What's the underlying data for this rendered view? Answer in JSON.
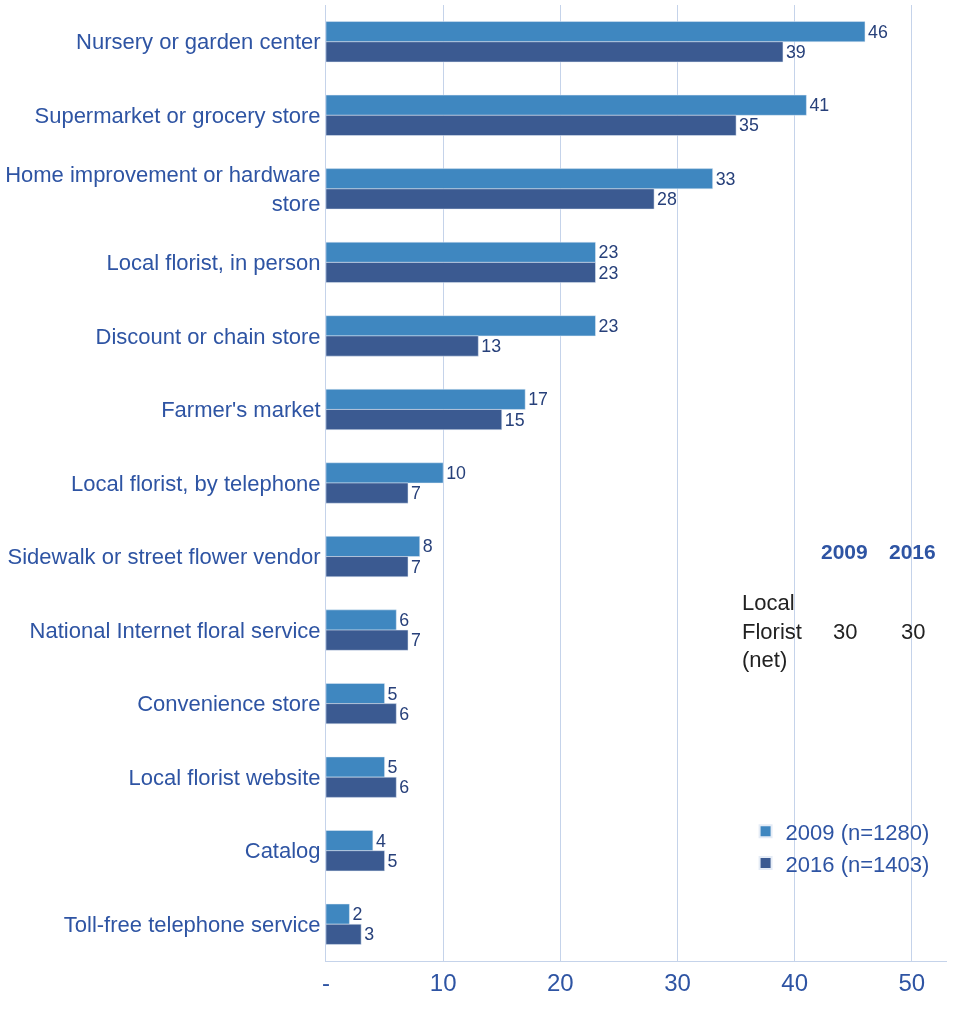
{
  "chart_data": {
    "type": "bar",
    "orientation": "horizontal",
    "categories": [
      "Nursery or garden center",
      "Supermarket or grocery store",
      "Home improvement or hardware store",
      "Local florist, in person",
      "Discount or chain store",
      "Farmer's market",
      "Local florist, by telephone",
      "Sidewalk or street flower vendor",
      "National Internet floral service",
      "Convenience store",
      "Local florist website",
      "Catalog",
      "Toll-free telephone service"
    ],
    "series": [
      {
        "name": "2009 (n=1280)",
        "color": "#3f87c0",
        "values": [
          46,
          41,
          33,
          23,
          23,
          17,
          10,
          8,
          6,
          5,
          5,
          4,
          2
        ]
      },
      {
        "name": "2016 (n=1403)",
        "color": "#3b5a91",
        "values": [
          39,
          35,
          28,
          23,
          13,
          15,
          7,
          7,
          7,
          6,
          6,
          5,
          3
        ]
      }
    ],
    "xlim": [
      0,
      53
    ],
    "xticks": [
      {
        "value": 0,
        "label": "-"
      },
      10,
      20,
      30,
      40,
      50
    ],
    "grid": "x",
    "data_labels": true,
    "legend": "bottom right",
    "annotations": [
      "2009",
      "2016",
      "Local Florist (net)",
      "30",
      "30"
    ]
  }
}
